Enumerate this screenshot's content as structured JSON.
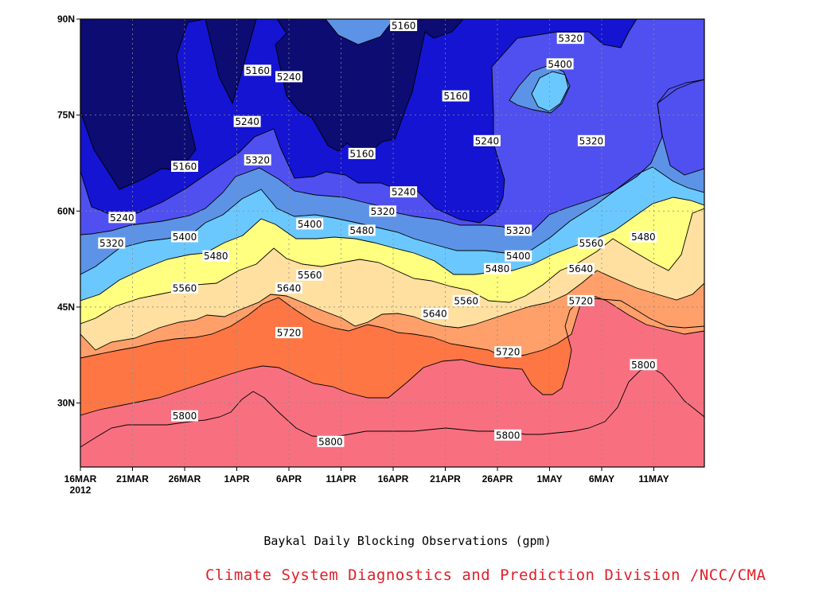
{
  "chart_data": {
    "type": "heatmap",
    "subtype": "filled-contour",
    "title": "Baykal Daily Blocking Observations (gpm)",
    "credit": "Climate System Diagnostics and Prediction Division /NCC/CMA",
    "units": "gpm",
    "x_axis": {
      "ticks": [
        "16MAR",
        "21MAR",
        "26MAR",
        "1APR",
        "6APR",
        "11APR",
        "16APR",
        "21APR",
        "26APR",
        "1MAY",
        "6MAY",
        "11MAY"
      ],
      "first_tick_year": "2012",
      "range": [
        "2012-03-16",
        "2012-05-15"
      ]
    },
    "y_axis": {
      "ticks": [
        "30N",
        "45N",
        "60N",
        "75N",
        "90N"
      ],
      "tick_values": [
        30,
        45,
        60,
        75,
        90
      ],
      "range": [
        20,
        90
      ]
    },
    "grid": true,
    "contour_levels": [
      5160,
      5240,
      5320,
      5400,
      5480,
      5560,
      5640,
      5720,
      5800
    ],
    "fill_colors": [
      "#0c0c73",
      "#1414d2",
      "#5050f0",
      "#5c93e6",
      "#6bc8ff",
      "#ffff80",
      "#ffe0a0",
      "#ffa06a",
      "#ff7645",
      "#f87080"
    ],
    "contour_labels": [
      {
        "value": 5160,
        "date": "2012-04-02",
        "lat": 82
      },
      {
        "value": 5160,
        "date": "2012-03-26",
        "lat": 67
      },
      {
        "value": 5160,
        "date": "2012-04-16",
        "lat": 89
      },
      {
        "value": 5160,
        "date": "2012-04-21",
        "lat": 78
      },
      {
        "value": 5160,
        "date": "2012-04-12",
        "lat": 69
      },
      {
        "value": 5240,
        "date": "2012-04-05",
        "lat": 81
      },
      {
        "value": 5240,
        "date": "2012-04-01",
        "lat": 74
      },
      {
        "value": 5240,
        "date": "2012-03-20",
        "lat": 59
      },
      {
        "value": 5240,
        "date": "2012-04-16",
        "lat": 63
      },
      {
        "value": 5240,
        "date": "2012-04-24",
        "lat": 71
      },
      {
        "value": 5320,
        "date": "2012-04-02",
        "lat": 68
      },
      {
        "value": 5320,
        "date": "2012-03-19",
        "lat": 55
      },
      {
        "value": 5320,
        "date": "2012-04-14",
        "lat": 60
      },
      {
        "value": 5320,
        "date": "2012-04-27",
        "lat": 57
      },
      {
        "value": 5320,
        "date": "2012-05-02",
        "lat": 87
      },
      {
        "value": 5320,
        "date": "2012-05-04",
        "lat": 71
      },
      {
        "value": 5400,
        "date": "2012-03-26",
        "lat": 56
      },
      {
        "value": 5400,
        "date": "2012-04-07",
        "lat": 58
      },
      {
        "value": 5400,
        "date": "2012-04-27",
        "lat": 53
      },
      {
        "value": 5400,
        "date": "2012-05-01",
        "lat": 83
      },
      {
        "value": 5480,
        "date": "2012-03-29",
        "lat": 53
      },
      {
        "value": 5480,
        "date": "2012-04-12",
        "lat": 57
      },
      {
        "value": 5480,
        "date": "2012-04-25",
        "lat": 51
      },
      {
        "value": 5480,
        "date": "2012-05-09",
        "lat": 56
      },
      {
        "value": 5560,
        "date": "2012-03-26",
        "lat": 48
      },
      {
        "value": 5560,
        "date": "2012-04-07",
        "lat": 50
      },
      {
        "value": 5560,
        "date": "2012-04-22",
        "lat": 46
      },
      {
        "value": 5560,
        "date": "2012-05-04",
        "lat": 55
      },
      {
        "value": 5640,
        "date": "2012-04-05",
        "lat": 48
      },
      {
        "value": 5640,
        "date": "2012-04-19",
        "lat": 44
      },
      {
        "value": 5640,
        "date": "2012-05-03",
        "lat": 51
      },
      {
        "value": 5720,
        "date": "2012-04-05",
        "lat": 41
      },
      {
        "value": 5720,
        "date": "2012-04-26",
        "lat": 38
      },
      {
        "value": 5720,
        "date": "2012-05-03",
        "lat": 46
      },
      {
        "value": 5800,
        "date": "2012-03-26",
        "lat": 28
      },
      {
        "value": 5800,
        "date": "2012-04-09",
        "lat": 24
      },
      {
        "value": 5800,
        "date": "2012-04-26",
        "lat": 25
      },
      {
        "value": 5800,
        "date": "2012-05-09",
        "lat": 36
      }
    ]
  },
  "colors": {
    "background": "#ffffff",
    "credit_text": "#e0202a",
    "contour_line": "#000000",
    "grid_line": "#8a8a8a"
  }
}
